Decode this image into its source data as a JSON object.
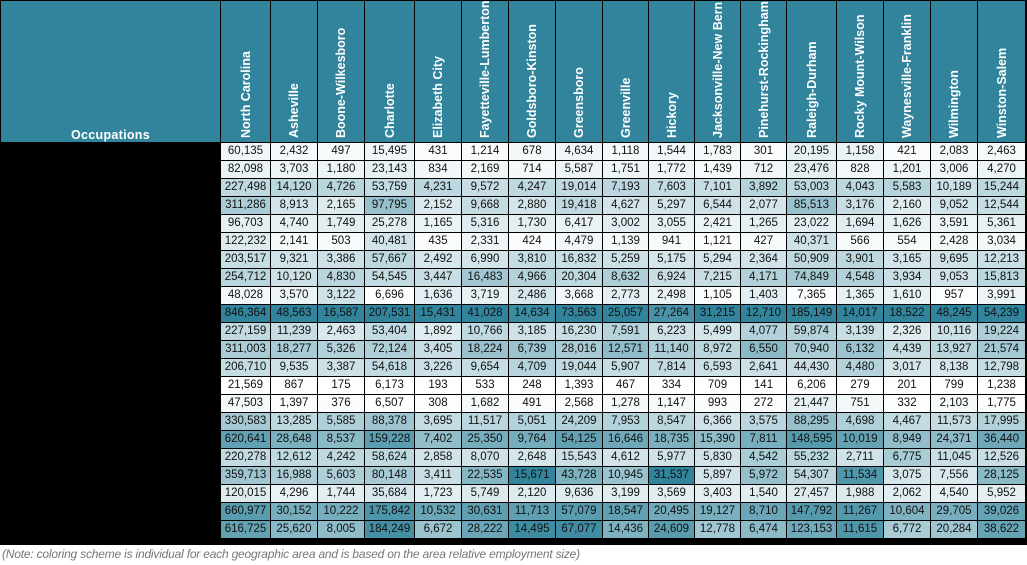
{
  "header": {
    "occupations_label": "Occupations",
    "areas": [
      "North Carolina",
      "Asheville",
      "Boone-Wilkesboro",
      "Charlotte",
      "Elizabeth City",
      "Fayetteville-Lumberton",
      "Goldsboro-Kinston",
      "Greensboro",
      "Greenville",
      "Hickory",
      "Jacksonville-New Bern",
      "Pinehurst-Rockingham",
      "Raleigh-Durham",
      "Rocky Mount-Wilson",
      "Waynesville-Franklin",
      "Wilmington",
      "Winston-Salem"
    ]
  },
  "colors": {
    "header_bg": "#31849b",
    "scale_low": "#ffffff",
    "scale_high": "#31849b"
  },
  "rows": [
    [
      "60,135",
      "2,432",
      "497",
      "15,495",
      "431",
      "1,214",
      "678",
      "4,634",
      "1,118",
      "1,544",
      "1,783",
      "301",
      "20,195",
      "1,158",
      "421",
      "2,083",
      "2,463"
    ],
    [
      "82,098",
      "3,703",
      "1,180",
      "23,143",
      "834",
      "2,169",
      "714",
      "5,587",
      "1,751",
      "1,772",
      "1,439",
      "712",
      "23,476",
      "828",
      "1,201",
      "3,006",
      "4,270"
    ],
    [
      "227,498",
      "14,120",
      "4,726",
      "53,759",
      "4,231",
      "9,572",
      "4,247",
      "19,014",
      "7,193",
      "7,603",
      "7,101",
      "3,892",
      "53,003",
      "4,043",
      "5,583",
      "10,189",
      "15,244"
    ],
    [
      "311,286",
      "8,913",
      "2,165",
      "97,795",
      "2,152",
      "9,668",
      "2,880",
      "19,418",
      "4,627",
      "5,297",
      "6,544",
      "2,077",
      "85,513",
      "3,176",
      "2,160",
      "9,052",
      "12,544"
    ],
    [
      "96,703",
      "4,740",
      "1,749",
      "25,278",
      "1,165",
      "5,316",
      "1,730",
      "6,417",
      "3,002",
      "3,055",
      "2,421",
      "1,265",
      "23,022",
      "1,694",
      "1,626",
      "3,591",
      "5,361"
    ],
    [
      "122,232",
      "2,141",
      "503",
      "40,481",
      "435",
      "2,331",
      "424",
      "4,479",
      "1,139",
      "941",
      "1,121",
      "427",
      "40,371",
      "566",
      "554",
      "2,428",
      "3,034"
    ],
    [
      "203,517",
      "9,321",
      "3,386",
      "57,667",
      "2,492",
      "6,990",
      "3,810",
      "16,832",
      "5,259",
      "5,175",
      "5,294",
      "2,364",
      "50,909",
      "3,901",
      "3,165",
      "9,695",
      "12,213"
    ],
    [
      "254,712",
      "10,120",
      "4,830",
      "54,545",
      "3,447",
      "16,483",
      "4,966",
      "20,304",
      "8,632",
      "6,924",
      "7,215",
      "4,171",
      "74,849",
      "4,548",
      "3,934",
      "9,053",
      "15,813"
    ],
    [
      "48,028",
      "3,570",
      "3,122",
      "6,696",
      "1,636",
      "3,719",
      "2,486",
      "3,668",
      "2,773",
      "2,498",
      "1,105",
      "1,403",
      "7,365",
      "1,365",
      "1,610",
      "957",
      "3,991"
    ],
    [
      "846,364",
      "48,563",
      "16,587",
      "207,531",
      "15,431",
      "41,028",
      "14,634",
      "73,563",
      "25,057",
      "27,264",
      "31,215",
      "12,710",
      "185,149",
      "14,017",
      "18,522",
      "48,245",
      "54,239"
    ],
    [
      "227,159",
      "11,239",
      "2,463",
      "53,404",
      "1,892",
      "10,766",
      "3,185",
      "16,230",
      "7,591",
      "6,223",
      "5,499",
      "4,077",
      "59,874",
      "3,139",
      "2,326",
      "10,116",
      "19,224"
    ],
    [
      "311,003",
      "18,277",
      "5,326",
      "72,124",
      "3,405",
      "18,224",
      "6,739",
      "28,016",
      "12,571",
      "11,140",
      "8,972",
      "6,550",
      "70,940",
      "6,132",
      "4,439",
      "13,927",
      "21,574"
    ],
    [
      "206,710",
      "9,535",
      "3,387",
      "54,618",
      "3,226",
      "9,654",
      "4,709",
      "19,044",
      "5,907",
      "7,814",
      "6,593",
      "2,641",
      "44,430",
      "4,480",
      "3,017",
      "8,138",
      "12,798"
    ],
    [
      "21,569",
      "867",
      "175",
      "6,173",
      "193",
      "533",
      "248",
      "1,393",
      "467",
      "334",
      "709",
      "141",
      "6,206",
      "279",
      "201",
      "799",
      "1,238"
    ],
    [
      "47,503",
      "1,397",
      "376",
      "6,507",
      "308",
      "1,682",
      "491",
      "2,568",
      "1,278",
      "1,147",
      "993",
      "272",
      "21,447",
      "751",
      "332",
      "2,103",
      "1,775"
    ],
    [
      "330,583",
      "13,285",
      "5,585",
      "88,378",
      "3,695",
      "11,517",
      "5,051",
      "24,209",
      "7,953",
      "8,547",
      "6,366",
      "3,575",
      "88,295",
      "4,698",
      "4,467",
      "11,573",
      "17,995"
    ],
    [
      "620,641",
      "28,648",
      "8,537",
      "159,228",
      "7,402",
      "25,350",
      "9,764",
      "54,125",
      "16,646",
      "18,735",
      "15,390",
      "7,811",
      "148,595",
      "10,019",
      "8,949",
      "24,371",
      "36,440"
    ],
    [
      "220,278",
      "12,612",
      "4,242",
      "58,624",
      "2,858",
      "8,070",
      "2,648",
      "15,543",
      "4,612",
      "5,977",
      "5,830",
      "4,542",
      "55,232",
      "2,711",
      "6,775",
      "11,045",
      "12,526"
    ],
    [
      "359,713",
      "16,988",
      "5,603",
      "80,148",
      "3,411",
      "22,535",
      "15,671",
      "43,728",
      "10,945",
      "31,537",
      "5,897",
      "5,972",
      "54,307",
      "11,534",
      "3,075",
      "7,556",
      "28,125"
    ],
    [
      "120,015",
      "4,296",
      "1,744",
      "35,684",
      "1,723",
      "5,749",
      "2,120",
      "9,636",
      "3,199",
      "3,569",
      "3,403",
      "1,540",
      "27,457",
      "1,988",
      "2,062",
      "4,540",
      "5,952"
    ],
    [
      "660,977",
      "30,152",
      "10,222",
      "175,842",
      "10,532",
      "30,631",
      "11,713",
      "57,079",
      "18,547",
      "20,495",
      "19,127",
      "8,710",
      "147,792",
      "11,267",
      "10,604",
      "29,705",
      "39,026"
    ],
    [
      "616,725",
      "25,620",
      "8,005",
      "184,249",
      "6,672",
      "28,222",
      "14,495",
      "67,077",
      "14,436",
      "24,609",
      "12,778",
      "6,474",
      "123,153",
      "11,615",
      "6,772",
      "20,284",
      "38,622"
    ]
  ],
  "note": "(Note: coloring scheme is individual for each geographic area and is based on the area relative employment size)"
}
